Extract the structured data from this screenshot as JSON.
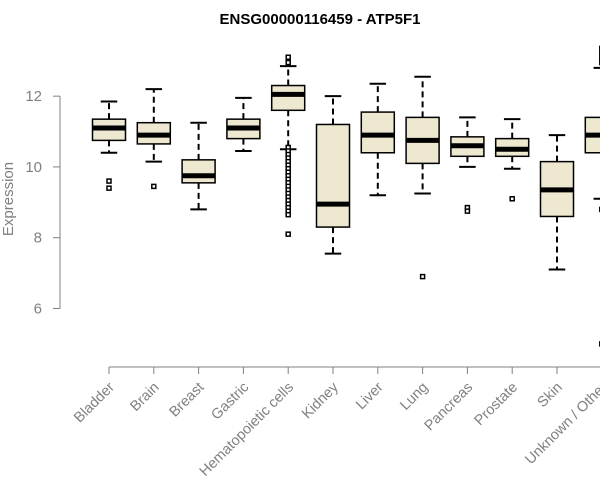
{
  "chart_data": {
    "type": "boxplot",
    "title": "ENSG00000116459 - ATP5F1",
    "xlabel": "",
    "ylabel": "Expression",
    "ylim": [
      4.6,
      13.7
    ],
    "yticks": [
      6,
      8,
      10,
      12
    ],
    "grid": false,
    "categories": [
      "Bladder",
      "Brain",
      "Breast",
      "Gastric",
      "Hematopoietic cells",
      "Kidney",
      "Liver",
      "Lung",
      "Pancreas",
      "Prostate",
      "Skin",
      "Unknown / Other"
    ],
    "boxes": [
      {
        "name": "Bladder",
        "whisker_low": 10.4,
        "q1": 10.75,
        "median": 11.1,
        "q3": 11.35,
        "whisker_high": 11.85,
        "outliers": [
          9.6,
          9.4
        ]
      },
      {
        "name": "Brain",
        "whisker_low": 10.15,
        "q1": 10.65,
        "median": 10.9,
        "q3": 11.25,
        "whisker_high": 12.2,
        "outliers": [
          9.45
        ]
      },
      {
        "name": "Breast",
        "whisker_low": 8.8,
        "q1": 9.55,
        "median": 9.75,
        "q3": 10.2,
        "whisker_high": 11.25,
        "outliers": []
      },
      {
        "name": "Gastric",
        "whisker_low": 10.45,
        "q1": 10.8,
        "median": 11.1,
        "q3": 11.35,
        "whisker_high": 11.95,
        "outliers": []
      },
      {
        "name": "Hematopoietic cells",
        "whisker_low": 10.5,
        "q1": 11.6,
        "median": 12.05,
        "q3": 12.3,
        "whisker_high": 12.85,
        "outliers": [
          13.1,
          12.95,
          10.55,
          10.45,
          10.35,
          10.25,
          10.15,
          10.05,
          9.95,
          9.85,
          9.75,
          9.65,
          9.55,
          9.45,
          9.35,
          9.25,
          9.15,
          9.05,
          8.95,
          8.85,
          8.75,
          8.65,
          8.1
        ]
      },
      {
        "name": "Kidney",
        "whisker_low": 7.55,
        "q1": 8.3,
        "median": 8.95,
        "q3": 11.2,
        "whisker_high": 12.0,
        "outliers": []
      },
      {
        "name": "Liver",
        "whisker_low": 9.2,
        "q1": 10.4,
        "median": 10.9,
        "q3": 11.55,
        "whisker_high": 12.35,
        "outliers": []
      },
      {
        "name": "Lung",
        "whisker_low": 9.25,
        "q1": 10.1,
        "median": 10.75,
        "q3": 11.4,
        "whisker_high": 12.55,
        "outliers": [
          6.9
        ]
      },
      {
        "name": "Pancreas",
        "whisker_low": 10.0,
        "q1": 10.3,
        "median": 10.6,
        "q3": 10.85,
        "whisker_high": 11.4,
        "outliers": [
          8.85,
          8.75
        ]
      },
      {
        "name": "Prostate",
        "whisker_low": 9.95,
        "q1": 10.3,
        "median": 10.5,
        "q3": 10.8,
        "whisker_high": 11.35,
        "outliers": [
          9.1
        ]
      },
      {
        "name": "Skin",
        "whisker_low": 7.1,
        "q1": 8.6,
        "median": 9.35,
        "q3": 10.15,
        "whisker_high": 10.9,
        "outliers": []
      },
      {
        "name": "Unknown / Other",
        "whisker_low": 9.1,
        "q1": 10.4,
        "median": 10.9,
        "q3": 11.4,
        "whisker_high": 12.8,
        "outliers": [
          13.35,
          13.2,
          13.05,
          12.95,
          8.8,
          5.0
        ]
      }
    ]
  }
}
